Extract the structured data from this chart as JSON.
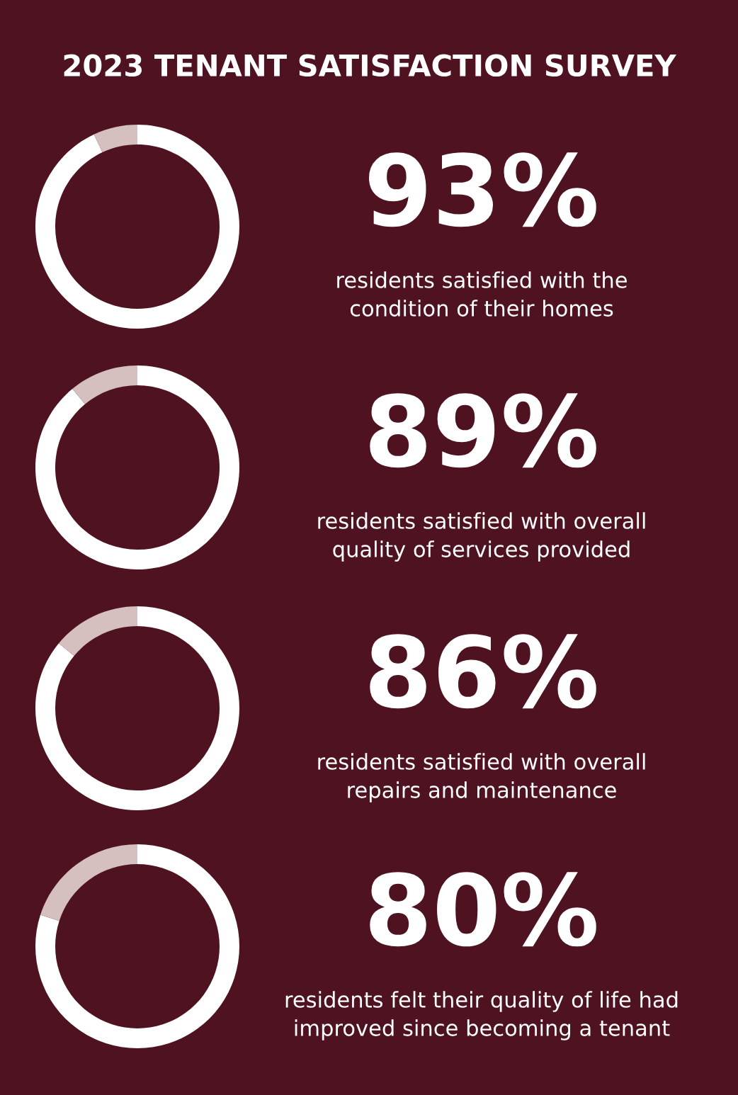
{
  "chart_data": [
    {
      "type": "donut",
      "title": "2023 TENANT SATISFACTION SURVEY",
      "categories": [
        null,
        null
      ],
      "values": [
        93,
        7
      ],
      "colors": [
        "#ffffff",
        "#d6bfbf"
      ],
      "value_labels": [
        "93%",
        null
      ],
      "annotations": [
        "residents satisfied with the\ncondition of their homes"
      ]
    },
    {
      "type": "donut",
      "categories": [
        null,
        null
      ],
      "values": [
        89,
        11
      ],
      "colors": [
        "#ffffff",
        "#d6bfbf"
      ],
      "value_labels": [
        "89%",
        null
      ],
      "annotations": [
        "residents satisfied with overall\nquality of services provided"
      ]
    },
    {
      "type": "donut",
      "categories": [
        null,
        null
      ],
      "values": [
        86,
        14
      ],
      "colors": [
        "#ffffff",
        "#d6bfbf"
      ],
      "value_labels": [
        "86%",
        null
      ],
      "annotations": [
        "residents satisfied with overall\nrepairs and maintenance"
      ]
    },
    {
      "type": "donut",
      "categories": [
        null,
        null
      ],
      "values": [
        80,
        20
      ],
      "colors": [
        "#ffffff",
        "#d6bfbf"
      ],
      "value_labels": [
        "80%",
        null
      ],
      "annotations": [
        "residents felt their quality of life had\nimproved since becoming a tenant"
      ]
    }
  ]
}
